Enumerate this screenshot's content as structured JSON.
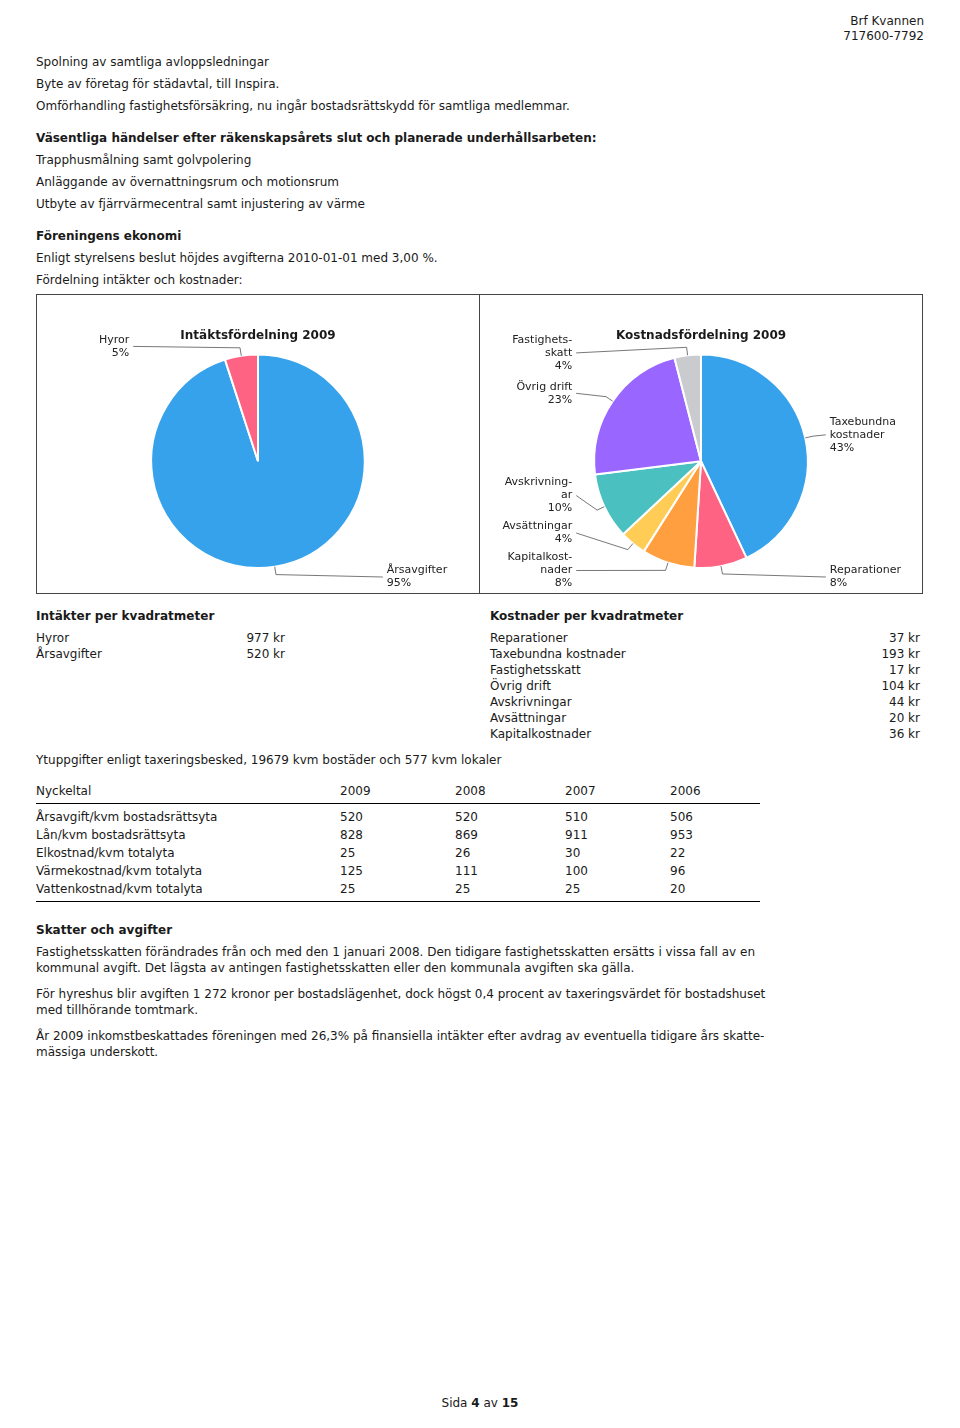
{
  "page": {
    "header": [
      "Brf Kvannen",
      "717600-7792"
    ],
    "intro_items": [
      "Spolning av samtliga avloppsledningar",
      "Byte av företag för städavtal, till Inspira.",
      "Omförhandling fastighetsförsäkring, nu ingår bostadsrättskydd för samtliga medlemmar."
    ],
    "heading1": "Väsentliga händelser efter räkenskapsårets slut och planerade underhållsarbeten:",
    "planned_items": [
      "Trapphusmålning samt golvpolering",
      "Anläggande av övernattningsrum och motionsrum",
      "Utbyte av fjärrvärmecentral samt injustering av värme"
    ],
    "heading2": "Föreningens ekonomi",
    "economy_text": "Enligt styrelsens beslut höjdes avgifterna 2010-01-01 med 3,00 %.",
    "distribution_text": "Fördelning intäkter och kostnader:",
    "income": {
      "title": "Intäkter per kvadratmeter",
      "rows": [
        [
          "Hyror",
          "977 kr"
        ],
        [
          "Årsavgifter",
          "520 kr"
        ]
      ]
    },
    "costs": {
      "title": "Kostnader per kvadratmeter",
      "rows": [
        [
          "Reparationer",
          "37 kr"
        ],
        [
          "Taxebundna kostnader",
          "193 kr"
        ],
        [
          "Fastighetsskatt",
          "17 kr"
        ],
        [
          "Övrig drift",
          "104 kr"
        ],
        [
          "Avskrivningar",
          "44 kr"
        ],
        [
          "Avsättningar",
          "20 kr"
        ],
        [
          "Kapitalkostnader",
          "36 kr"
        ]
      ]
    },
    "area_text": "Ytuppgifter enligt taxeringsbesked, 19679 kvm bostäder och 577 kvm lokaler",
    "key_figures": {
      "headers": [
        "Nyckeltal",
        "2009",
        "2008",
        "2007",
        "2006"
      ],
      "rows": [
        [
          "Årsavgift/kvm bostadsrättsyta",
          "520",
          "520",
          "510",
          "506"
        ],
        [
          "Lån/kvm bostadsrättsyta",
          "828",
          "869",
          "911",
          "953"
        ],
        [
          "Elkostnad/kvm totalyta",
          "25",
          "26",
          "30",
          "22"
        ],
        [
          "Värmekostnad/kvm totalyta",
          "125",
          "111",
          "100",
          "96"
        ],
        [
          "Vattenkostnad/kvm totalyta",
          "25",
          "25",
          "25",
          "20"
        ]
      ]
    },
    "taxes": {
      "title": "Skatter och avgifter",
      "paragraphs": [
        [
          "Fastighetsskatten förändrades från och med den 1 januari 2008. Den tidigare fastighetsskatten ersätts i vissa fall av en",
          "kommunal avgift. Det lägsta av antingen fastighetsskatten eller den kommunala avgiften ska gälla."
        ],
        [
          "För hyreshus blir avgiften 1 272 kronor per bostadslägenhet, dock högst 0,4 procent av taxeringsvärdet för bostadshuset",
          "med tillhörande tomtmark."
        ],
        [
          "År 2009 inkomstbeskattades föreningen med 26,3% på finansiella intäkter efter avdrag av eventuella tidigare års skatte-",
          "mässiga underskott."
        ]
      ]
    },
    "footer": [
      "Sida",
      "4",
      "av",
      "15"
    ]
  },
  "chart_data": [
    {
      "type": "pie",
      "title": "Intäktsfördelning 2009",
      "categories": [
        "Årsavgifter",
        "Hyror"
      ],
      "values": [
        95,
        5
      ],
      "value_labels": [
        "95%",
        "5%"
      ],
      "data_labels": true
    },
    {
      "type": "pie",
      "title": "Kostnadsfördelning 2009",
      "categories": [
        "Taxebundna\nkostnader",
        "Reparationer",
        "Kapitalkost-\nnader",
        "Avsättningar",
        "Avskrivning-\nar",
        "Övrig drift",
        "Fastighets-\nskatt"
      ],
      "values": [
        43,
        8,
        8,
        4,
        10,
        23,
        4
      ],
      "value_labels": [
        "43%",
        "8%",
        "8%",
        "4%",
        "10%",
        "23%",
        "4%"
      ],
      "data_labels": true
    }
  ]
}
